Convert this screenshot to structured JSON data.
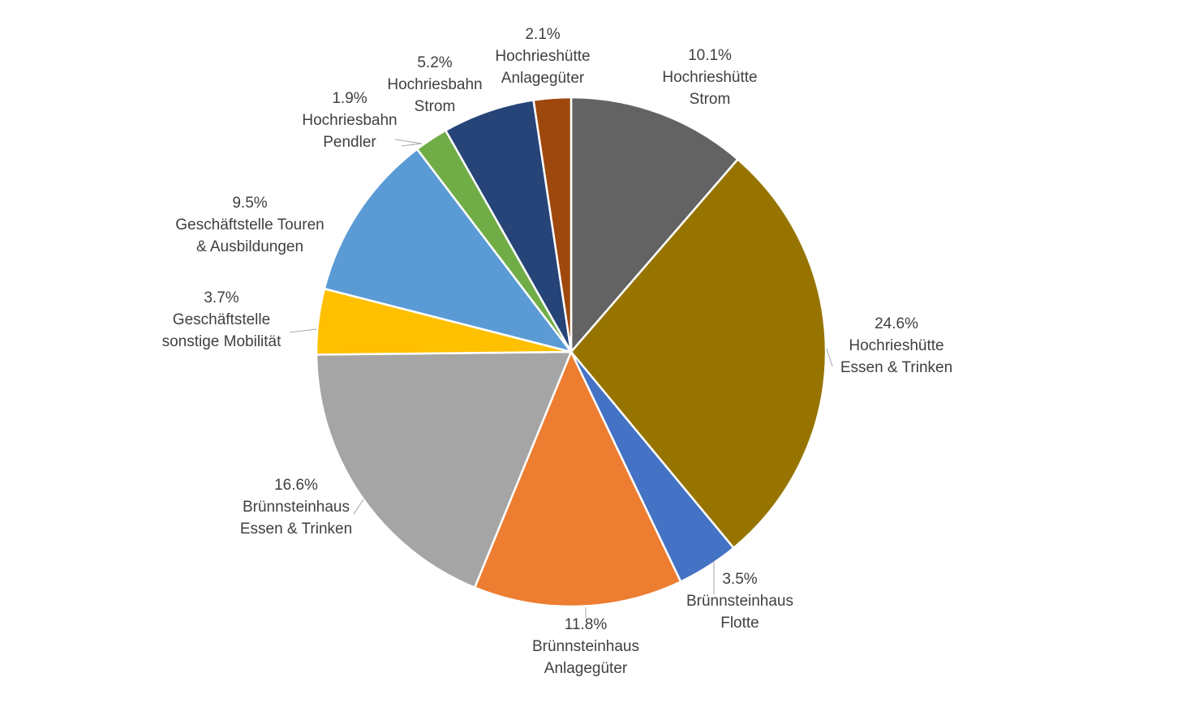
{
  "chart_data": {
    "type": "pie",
    "title": "",
    "start": "12 o'clock, clockwise",
    "slices": [
      {
        "name": "Hochrieshütte Strom",
        "label_lines": [
          "10.1%",
          "Hochrieshütte",
          "Strom"
        ],
        "value": 10.1,
        "color": "#636363"
      },
      {
        "name": "Hochrieshütte Essen & Trinken",
        "label_lines": [
          "24.6%",
          "Hochrieshütte",
          "Essen & Trinken"
        ],
        "value": 24.6,
        "color": "#977400"
      },
      {
        "name": "Brünnsteinhaus Flotte",
        "label_lines": [
          "3.5%",
          "Brünnsteinhaus",
          "Flotte"
        ],
        "value": 3.5,
        "color": "#4472C4"
      },
      {
        "name": "Brünnsteinhaus Anlagegüter",
        "label_lines": [
          "11.8%",
          "Brünnsteinhaus",
          "Anlagegüter"
        ],
        "value": 11.8,
        "color": "#ED7D31"
      },
      {
        "name": "Brünnsteinhaus Essen & Trinken",
        "label_lines": [
          "16.6%",
          "Brünnsteinhaus",
          "Essen & Trinken"
        ],
        "value": 16.6,
        "color": "#A5A5A5"
      },
      {
        "name": "Geschäftstelle sonstige Mobilität",
        "label_lines": [
          "3.7%",
          "Geschäftstelle",
          "sonstige Mobilität"
        ],
        "value": 3.7,
        "color": "#FFC000"
      },
      {
        "name": "Geschäftstelle Touren & Ausbildungen",
        "label_lines": [
          "9.5%",
          "Geschäftstelle Touren",
          "& Ausbildungen"
        ],
        "value": 9.5,
        "color": "#5B9BD5"
      },
      {
        "name": "Hochriesbahn Pendler",
        "label_lines": [
          "1.9%",
          "Hochriesbahn",
          "Pendler"
        ],
        "value": 1.9,
        "color": "#70AD47"
      },
      {
        "name": "Hochriesbahn Strom",
        "label_lines": [
          "5.2%",
          "Hochriesbahn",
          "Strom"
        ],
        "value": 5.2,
        "color": "#264478"
      },
      {
        "name": "Hochrieshütte Anlagegüter",
        "label_lines": [
          "2.1%",
          "Hochrieshütte",
          "Anlagegüter"
        ],
        "value": 2.1,
        "color": "#9E480E"
      }
    ]
  }
}
